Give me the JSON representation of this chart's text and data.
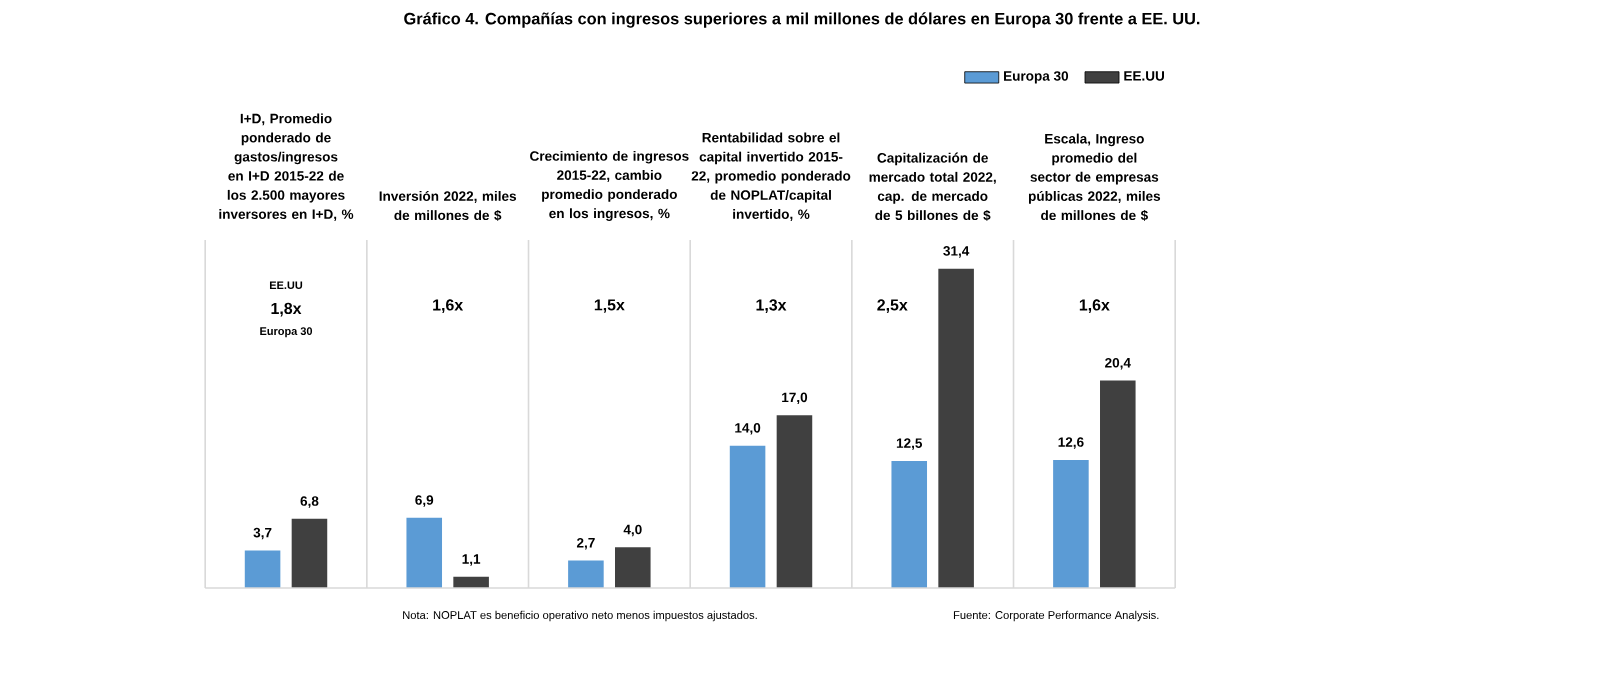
{
  "chart_data": {
    "type": "bar",
    "title": "Gráfico 4. Compañías con ingresos superiores a mil millones de dólares en Europa 30 frente a EE. UU.",
    "categories": [
      "I+D, Promedio ponderado de gastos/ingresos en I+D 2015-22 de los 2.500 mayores inversores en I+D, %",
      "Inversión 2022, miles de millones de $",
      "Crecimiento de ingresos 2015-22, cambio promedio ponderado en los ingresos, %",
      "Rentabilidad sobre el capital invertido 2015-22, promedio ponderado de NOPLAT/capital invertido, %",
      "Capitalización de mercado total 2022, cap. de mercado de 5 billones de $",
      "Escala, Ingreso promedio del sector de empresas públicas 2022, miles de millones de $"
    ],
    "series": [
      {
        "name": "Europa 30",
        "color": "#5b9bd5",
        "values": [
          3.7,
          6.9,
          2.7,
          14.0,
          12.5,
          12.6
        ],
        "value_labels": [
          "3,7",
          "6,9",
          "2,7",
          "14,0",
          "12,5",
          "12,6"
        ]
      },
      {
        "name": "EE.UU",
        "color": "#404040",
        "values": [
          6.8,
          1.1,
          4.0,
          17.0,
          31.4,
          20.4
        ],
        "value_labels": [
          "6,8",
          "1,1",
          "4,0",
          "17,0",
          "31,4",
          "20,4"
        ]
      }
    ],
    "legend": "top right",
    "grid": "x",
    "annotations": [
      "EE.UU",
      "1,8x",
      "Europa 30",
      "1,6x",
      "1,5x",
      "1,3x",
      "2,5x",
      "1,6x",
      "Nota: NOPLAT es beneficio operativo neto menos impuestos ajustados.",
      "Fuente: Corporate Performance Analysis."
    ]
  }
}
